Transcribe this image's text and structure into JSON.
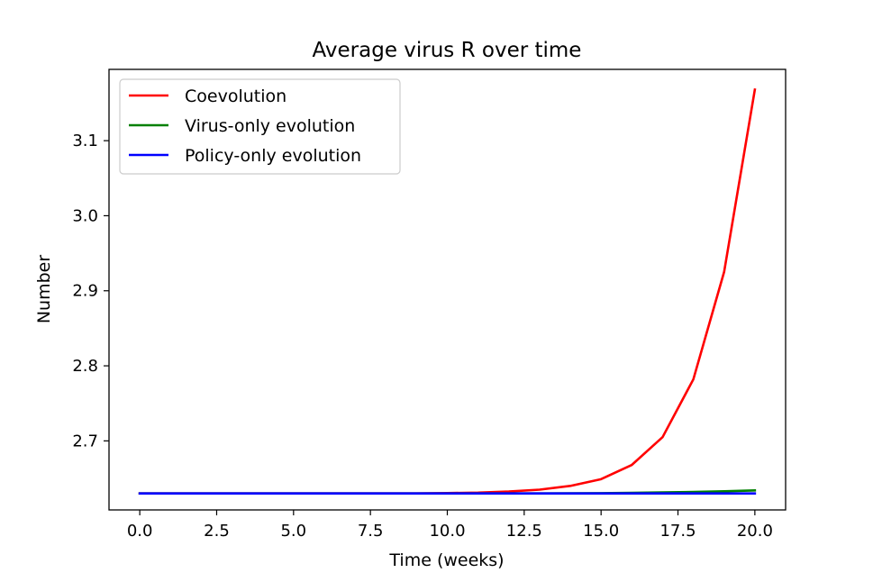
{
  "chart_data": {
    "type": "line",
    "title": "Average virus R over time",
    "xlabel": "Time (weeks)",
    "ylabel": "Number",
    "xlim": [
      -1.0,
      21.0
    ],
    "ylim": [
      2.608,
      3.195
    ],
    "x_ticks": [
      0.0,
      2.5,
      5.0,
      7.5,
      10.0,
      12.5,
      15.0,
      17.5,
      20.0
    ],
    "x_tick_labels": [
      "0.0",
      "2.5",
      "5.0",
      "7.5",
      "10.0",
      "12.5",
      "15.0",
      "17.5",
      "20.0"
    ],
    "y_ticks": [
      2.7,
      2.8,
      2.9,
      3.0,
      3.1
    ],
    "y_tick_labels": [
      "2.7",
      "2.8",
      "2.9",
      "3.0",
      "3.1"
    ],
    "grid": false,
    "legend_position": "top-left",
    "x": [
      0,
      1,
      2,
      3,
      4,
      5,
      6,
      7,
      8,
      9,
      10,
      11,
      12,
      13,
      14,
      15,
      16,
      17,
      18,
      19,
      20
    ],
    "series": [
      {
        "name": "Coevolution",
        "color": "#ff0000",
        "values": [
          2.63,
          2.63,
          2.63,
          2.63,
          2.63,
          2.63,
          2.63,
          2.63,
          2.63,
          2.63,
          2.6305,
          2.631,
          2.6325,
          2.635,
          2.64,
          2.649,
          2.668,
          2.705,
          2.782,
          2.925,
          3.168
        ]
      },
      {
        "name": "Virus-only evolution",
        "color": "#008000",
        "values": [
          2.63,
          2.63,
          2.63,
          2.63,
          2.63,
          2.63,
          2.63,
          2.63,
          2.63,
          2.63,
          2.63,
          2.63,
          2.63,
          2.63,
          2.6301,
          2.6303,
          2.6307,
          2.6313,
          2.632,
          2.6328,
          2.634
        ]
      },
      {
        "name": "Policy-only evolution",
        "color": "#0000ff",
        "values": [
          2.63,
          2.63,
          2.63,
          2.63,
          2.63,
          2.63,
          2.63,
          2.63,
          2.63,
          2.63,
          2.63,
          2.63,
          2.63,
          2.63,
          2.63,
          2.63,
          2.63,
          2.63,
          2.63,
          2.63,
          2.63
        ]
      }
    ]
  }
}
